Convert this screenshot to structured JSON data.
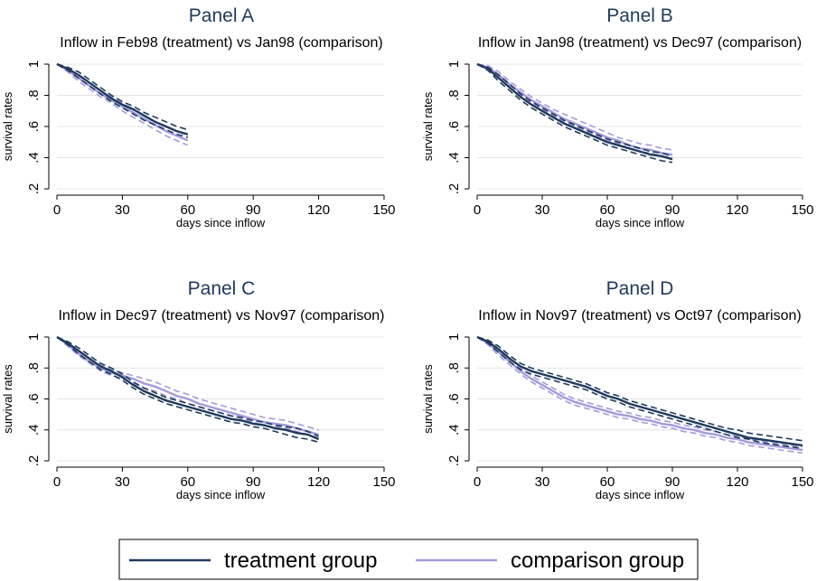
{
  "chart_data": [
    {
      "id": "A",
      "type": "line",
      "title": "Panel A",
      "subtitle": "Inflow in Feb98 (treatment) vs Jan98 (comparison)",
      "xlabel": "days since inflow",
      "ylabel": "survival rates",
      "xlim": [
        0,
        150
      ],
      "ylim": [
        0.2,
        1.0
      ],
      "xticks": [
        0,
        30,
        60,
        90,
        120,
        150
      ],
      "xtick_labels": [
        "0",
        "30",
        "60",
        "90",
        "120",
        "150"
      ],
      "yticks": [
        0.2,
        0.4,
        0.6,
        0.8,
        1.0
      ],
      "ytick_labels": [
        ".2",
        ".4",
        ".6",
        ".8",
        "1"
      ],
      "grid": true,
      "x": [
        0,
        5,
        10,
        15,
        20,
        25,
        30,
        35,
        40,
        45,
        50,
        55,
        60
      ],
      "series": [
        {
          "name": "treatment group",
          "values": [
            1.0,
            0.97,
            0.93,
            0.88,
            0.83,
            0.78,
            0.74,
            0.71,
            0.67,
            0.63,
            0.6,
            0.57,
            0.55
          ],
          "lower": [
            1.0,
            0.96,
            0.91,
            0.86,
            0.81,
            0.76,
            0.72,
            0.68,
            0.64,
            0.61,
            0.58,
            0.55,
            0.53
          ],
          "upper": [
            1.0,
            0.98,
            0.95,
            0.9,
            0.85,
            0.8,
            0.76,
            0.73,
            0.69,
            0.66,
            0.63,
            0.6,
            0.58
          ]
        },
        {
          "name": "comparison group",
          "values": [
            1.0,
            0.96,
            0.91,
            0.86,
            0.81,
            0.77,
            0.73,
            0.69,
            0.65,
            0.61,
            0.57,
            0.54,
            0.51
          ],
          "lower": [
            1.0,
            0.95,
            0.89,
            0.84,
            0.79,
            0.75,
            0.7,
            0.66,
            0.62,
            0.58,
            0.54,
            0.51,
            0.48
          ],
          "upper": [
            1.0,
            0.97,
            0.93,
            0.88,
            0.83,
            0.79,
            0.75,
            0.71,
            0.67,
            0.63,
            0.6,
            0.57,
            0.54
          ]
        }
      ]
    },
    {
      "id": "B",
      "type": "line",
      "title": "Panel B",
      "subtitle": "Inflow in Jan98 (treatment) vs Dec97 (comparison)",
      "xlabel": "days since inflow",
      "ylabel": "survival rates",
      "xlim": [
        0,
        150
      ],
      "ylim": [
        0.2,
        1.0
      ],
      "xticks": [
        0,
        30,
        60,
        90,
        120,
        150
      ],
      "xtick_labels": [
        "0",
        "30",
        "60",
        "90",
        "120",
        "150"
      ],
      "yticks": [
        0.2,
        0.4,
        0.6,
        0.8,
        1.0
      ],
      "ytick_labels": [
        ".2",
        ".4",
        ".6",
        ".8",
        "1"
      ],
      "grid": true,
      "x": [
        0,
        5,
        10,
        15,
        20,
        25,
        30,
        35,
        40,
        45,
        50,
        55,
        60,
        65,
        70,
        75,
        80,
        85,
        90
      ],
      "series": [
        {
          "name": "treatment group",
          "values": [
            1.0,
            0.97,
            0.91,
            0.85,
            0.79,
            0.74,
            0.7,
            0.66,
            0.62,
            0.59,
            0.56,
            0.53,
            0.5,
            0.48,
            0.46,
            0.44,
            0.42,
            0.41,
            0.39
          ],
          "lower": [
            1.0,
            0.96,
            0.89,
            0.83,
            0.77,
            0.72,
            0.68,
            0.64,
            0.6,
            0.57,
            0.54,
            0.51,
            0.48,
            0.46,
            0.44,
            0.42,
            0.4,
            0.38,
            0.37
          ],
          "upper": [
            1.0,
            0.98,
            0.93,
            0.87,
            0.81,
            0.76,
            0.72,
            0.68,
            0.64,
            0.61,
            0.58,
            0.55,
            0.52,
            0.5,
            0.48,
            0.46,
            0.44,
            0.43,
            0.41
          ]
        },
        {
          "name": "comparison group",
          "values": [
            1.0,
            0.98,
            0.93,
            0.87,
            0.82,
            0.77,
            0.73,
            0.69,
            0.65,
            0.62,
            0.59,
            0.56,
            0.53,
            0.51,
            0.48,
            0.46,
            0.45,
            0.43,
            0.42
          ],
          "lower": [
            1.0,
            0.97,
            0.91,
            0.85,
            0.8,
            0.75,
            0.71,
            0.67,
            0.63,
            0.6,
            0.57,
            0.54,
            0.51,
            0.49,
            0.46,
            0.44,
            0.43,
            0.41,
            0.4
          ],
          "upper": [
            1.0,
            0.99,
            0.95,
            0.89,
            0.84,
            0.79,
            0.75,
            0.71,
            0.68,
            0.65,
            0.62,
            0.59,
            0.56,
            0.53,
            0.51,
            0.49,
            0.48,
            0.46,
            0.45
          ]
        }
      ]
    },
    {
      "id": "C",
      "type": "line",
      "title": "Panel C",
      "subtitle": "Inflow in Dec97 (treatment) vs Nov97 (comparison)",
      "xlabel": "days since inflow",
      "ylabel": "survival rates",
      "xlim": [
        0,
        150
      ],
      "ylim": [
        0.2,
        1.0
      ],
      "xticks": [
        0,
        30,
        60,
        90,
        120,
        150
      ],
      "xtick_labels": [
        "0",
        "30",
        "60",
        "90",
        "120",
        "150"
      ],
      "yticks": [
        0.2,
        0.4,
        0.6,
        0.8,
        1.0
      ],
      "ytick_labels": [
        ".2",
        ".4",
        ".6",
        ".8",
        "1"
      ],
      "grid": true,
      "x": [
        0,
        5,
        10,
        15,
        20,
        25,
        30,
        35,
        40,
        45,
        50,
        55,
        60,
        65,
        70,
        75,
        80,
        85,
        90,
        95,
        100,
        105,
        110,
        115,
        120
      ],
      "series": [
        {
          "name": "treatment group",
          "values": [
            1.0,
            0.96,
            0.91,
            0.86,
            0.81,
            0.78,
            0.74,
            0.69,
            0.65,
            0.62,
            0.59,
            0.57,
            0.55,
            0.53,
            0.51,
            0.49,
            0.47,
            0.46,
            0.44,
            0.43,
            0.41,
            0.4,
            0.38,
            0.37,
            0.34
          ],
          "lower": [
            1.0,
            0.95,
            0.89,
            0.84,
            0.79,
            0.76,
            0.72,
            0.67,
            0.63,
            0.6,
            0.57,
            0.55,
            0.53,
            0.51,
            0.49,
            0.47,
            0.45,
            0.44,
            0.42,
            0.41,
            0.39,
            0.37,
            0.35,
            0.34,
            0.32
          ],
          "upper": [
            1.0,
            0.97,
            0.93,
            0.88,
            0.83,
            0.8,
            0.76,
            0.71,
            0.67,
            0.64,
            0.61,
            0.59,
            0.57,
            0.55,
            0.53,
            0.51,
            0.49,
            0.48,
            0.46,
            0.45,
            0.43,
            0.42,
            0.41,
            0.39,
            0.36
          ]
        },
        {
          "name": "comparison group",
          "values": [
            1.0,
            0.95,
            0.89,
            0.84,
            0.8,
            0.77,
            0.75,
            0.73,
            0.7,
            0.68,
            0.65,
            0.62,
            0.6,
            0.57,
            0.55,
            0.53,
            0.51,
            0.49,
            0.47,
            0.45,
            0.44,
            0.43,
            0.41,
            0.39,
            0.37
          ],
          "lower": [
            1.0,
            0.94,
            0.88,
            0.83,
            0.78,
            0.75,
            0.73,
            0.7,
            0.67,
            0.65,
            0.62,
            0.6,
            0.57,
            0.55,
            0.53,
            0.51,
            0.49,
            0.47,
            0.45,
            0.43,
            0.42,
            0.41,
            0.39,
            0.37,
            0.35
          ],
          "upper": [
            1.0,
            0.96,
            0.91,
            0.86,
            0.82,
            0.79,
            0.77,
            0.75,
            0.73,
            0.71,
            0.68,
            0.65,
            0.63,
            0.6,
            0.58,
            0.56,
            0.54,
            0.52,
            0.5,
            0.48,
            0.47,
            0.46,
            0.44,
            0.42,
            0.4
          ]
        }
      ]
    },
    {
      "id": "D",
      "type": "line",
      "title": "Panel D",
      "subtitle": "Inflow in Nov97 (treatment) vs Oct97 (comparison)",
      "xlabel": "days since inflow",
      "ylabel": "survival rates",
      "xlim": [
        0,
        150
      ],
      "ylim": [
        0.2,
        1.0
      ],
      "xticks": [
        0,
        30,
        60,
        90,
        120,
        150
      ],
      "xtick_labels": [
        "0",
        "30",
        "60",
        "90",
        "120",
        "150"
      ],
      "yticks": [
        0.2,
        0.4,
        0.6,
        0.8,
        1.0
      ],
      "ytick_labels": [
        ".2",
        ".4",
        ".6",
        ".8",
        "1"
      ],
      "grid": true,
      "x": [
        0,
        5,
        10,
        15,
        20,
        25,
        30,
        35,
        40,
        45,
        50,
        55,
        60,
        65,
        70,
        75,
        80,
        85,
        90,
        95,
        100,
        105,
        110,
        115,
        120,
        125,
        130,
        135,
        140,
        145,
        150
      ],
      "series": [
        {
          "name": "treatment group",
          "values": [
            1.0,
            0.97,
            0.92,
            0.86,
            0.81,
            0.78,
            0.76,
            0.74,
            0.72,
            0.7,
            0.68,
            0.65,
            0.62,
            0.6,
            0.57,
            0.55,
            0.53,
            0.51,
            0.49,
            0.47,
            0.45,
            0.43,
            0.41,
            0.39,
            0.37,
            0.35,
            0.34,
            0.33,
            0.32,
            0.31,
            0.3
          ],
          "lower": [
            1.0,
            0.96,
            0.9,
            0.84,
            0.79,
            0.76,
            0.74,
            0.72,
            0.7,
            0.68,
            0.66,
            0.63,
            0.6,
            0.58,
            0.55,
            0.53,
            0.51,
            0.49,
            0.47,
            0.45,
            0.43,
            0.41,
            0.39,
            0.37,
            0.35,
            0.34,
            0.32,
            0.31,
            0.3,
            0.29,
            0.28
          ],
          "upper": [
            1.0,
            0.98,
            0.94,
            0.88,
            0.83,
            0.8,
            0.78,
            0.76,
            0.74,
            0.72,
            0.7,
            0.67,
            0.64,
            0.62,
            0.59,
            0.57,
            0.55,
            0.53,
            0.51,
            0.49,
            0.47,
            0.45,
            0.43,
            0.41,
            0.4,
            0.38,
            0.37,
            0.36,
            0.35,
            0.34,
            0.33
          ]
        },
        {
          "name": "comparison group",
          "values": [
            1.0,
            0.96,
            0.9,
            0.84,
            0.78,
            0.73,
            0.69,
            0.65,
            0.61,
            0.58,
            0.56,
            0.54,
            0.52,
            0.5,
            0.49,
            0.47,
            0.46,
            0.44,
            0.43,
            0.41,
            0.4,
            0.38,
            0.37,
            0.35,
            0.34,
            0.32,
            0.31,
            0.3,
            0.29,
            0.28,
            0.27
          ],
          "lower": [
            1.0,
            0.95,
            0.88,
            0.82,
            0.76,
            0.71,
            0.67,
            0.63,
            0.59,
            0.56,
            0.54,
            0.52,
            0.5,
            0.48,
            0.47,
            0.45,
            0.44,
            0.42,
            0.41,
            0.39,
            0.38,
            0.36,
            0.35,
            0.33,
            0.32,
            0.3,
            0.29,
            0.28,
            0.27,
            0.26,
            0.25
          ],
          "upper": [
            1.0,
            0.97,
            0.92,
            0.86,
            0.8,
            0.75,
            0.71,
            0.67,
            0.63,
            0.6,
            0.58,
            0.56,
            0.54,
            0.52,
            0.51,
            0.49,
            0.48,
            0.46,
            0.45,
            0.43,
            0.42,
            0.4,
            0.39,
            0.37,
            0.36,
            0.34,
            0.33,
            0.32,
            0.31,
            0.3,
            0.29
          ]
        }
      ]
    }
  ],
  "legend": {
    "position": "bottom",
    "items": [
      {
        "label": "treatment group",
        "color": "#1f3a5c"
      },
      {
        "label": "comparison group",
        "color": "#a39bdc"
      }
    ]
  },
  "colors": {
    "treatment": "#1f3a5c",
    "comparison": "#a39bdc",
    "grid": "#e4e4e4",
    "title": "#1f3a5c"
  }
}
